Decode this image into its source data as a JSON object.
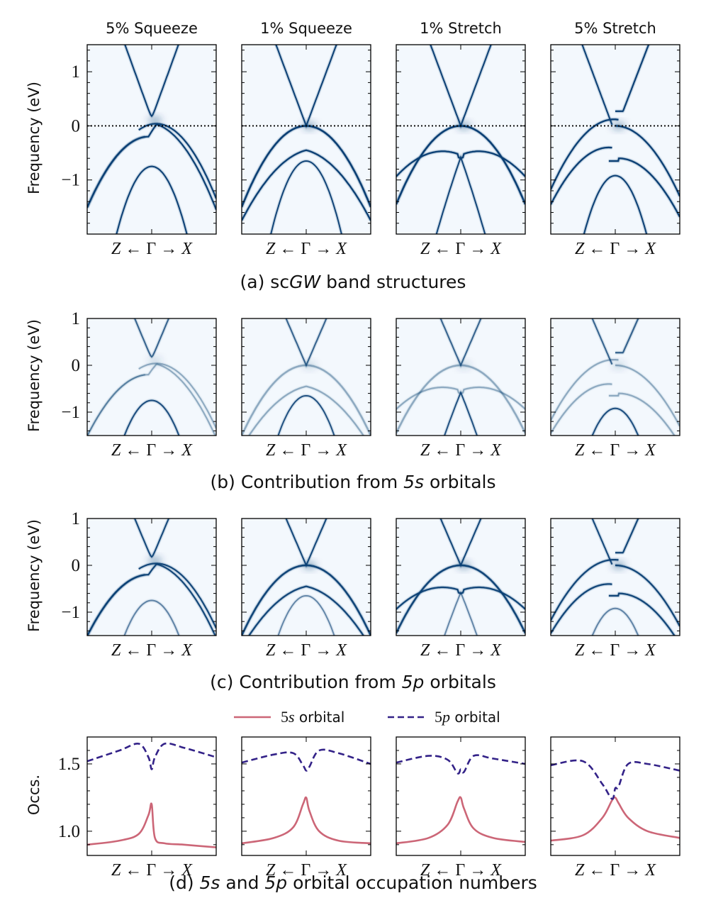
{
  "column_titles": [
    "5% Squeeze",
    "1% Squeeze",
    "1% Stretch",
    "5% Stretch"
  ],
  "kpath": {
    "left": "Z",
    "left_arrow": "←",
    "center": "Γ",
    "right_arrow": "→",
    "right": "X"
  },
  "chart_data": [
    {
      "type": "heatmap",
      "row": "a",
      "caption_prefix": "(a) sc",
      "caption_italic": "GW",
      "caption_suffix": " band structures",
      "ylabel": "Frequency (eV)",
      "ylim": [
        -2,
        1.5
      ],
      "yticks": [
        1,
        0,
        -1
      ],
      "ytick_labels": [
        "1",
        "0",
        "−1"
      ],
      "fermi_line": 0,
      "panels": [
        "5% Squeeze",
        "1% Squeeze",
        "1% Stretch",
        "5% Stretch"
      ]
    },
    {
      "type": "heatmap",
      "row": "b",
      "caption_prefix": "(b) Contribution from ",
      "caption_italic": "5s",
      "caption_suffix": " orbitals",
      "ylabel": "Frequency (eV)",
      "ylim": [
        -1.5,
        1
      ],
      "yticks": [
        1,
        0,
        -1
      ],
      "ytick_labels": [
        "1",
        "0",
        "−1"
      ],
      "panels": [
        "5% Squeeze",
        "1% Squeeze",
        "1% Stretch",
        "5% Stretch"
      ]
    },
    {
      "type": "heatmap",
      "row": "c",
      "caption_prefix": "(c) Contribution from ",
      "caption_italic": "5p",
      "caption_suffix": " orbitals",
      "ylabel": "Frequency (eV)",
      "ylim": [
        -1.5,
        1
      ],
      "yticks": [
        1,
        0,
        -1
      ],
      "ytick_labels": [
        "1",
        "0",
        "−1"
      ],
      "panels": [
        "5% Squeeze",
        "1% Squeeze",
        "1% Stretch",
        "5% Stretch"
      ]
    },
    {
      "type": "line",
      "row": "d",
      "caption_prefix": "(d) ",
      "caption_italic": "5s",
      "caption_mid": " and ",
      "caption_italic2": "5p",
      "caption_suffix": " orbital occupation numbers",
      "ylabel": "Occs.",
      "ylim": [
        0.82,
        1.7
      ],
      "yticks": [
        1.5,
        1.0
      ],
      "ytick_labels": [
        "1.5",
        "1.0"
      ],
      "legend": {
        "placement": "top-center",
        "entries": [
          {
            "math": "5s",
            "text": " orbital",
            "color": "#cc6677",
            "style": "solid"
          },
          {
            "math": "5p",
            "text": " orbital",
            "color": "#332288",
            "style": "dashed"
          }
        ]
      },
      "x": [
        -1,
        -0.5,
        -0.2,
        -0.05,
        0,
        0.05,
        0.2,
        0.5,
        1
      ],
      "panels": [
        {
          "name": "5% Squeeze",
          "series": [
            {
              "name": "5s orbital",
              "values": [
                0.9,
                0.93,
                0.98,
                1.12,
                1.2,
                0.95,
                0.91,
                0.9,
                0.88
              ]
            },
            {
              "name": "5p orbital",
              "values": [
                1.52,
                1.6,
                1.65,
                1.55,
                1.46,
                1.55,
                1.65,
                1.62,
                1.55
              ]
            }
          ]
        },
        {
          "name": "1% Squeeze",
          "series": [
            {
              "name": "5s orbital",
              "values": [
                0.91,
                0.95,
                1.03,
                1.2,
                1.25,
                1.15,
                1.0,
                0.93,
                0.91
              ]
            },
            {
              "name": "5p orbital",
              "values": [
                1.51,
                1.57,
                1.58,
                1.49,
                1.45,
                1.48,
                1.6,
                1.58,
                1.5
              ]
            }
          ]
        },
        {
          "name": "1% Stretch",
          "series": [
            {
              "name": "5s orbital",
              "values": [
                0.91,
                0.95,
                1.05,
                1.22,
                1.25,
                1.17,
                1.02,
                0.95,
                0.92
              ]
            },
            {
              "name": "5p orbital",
              "values": [
                1.51,
                1.56,
                1.53,
                1.43,
                1.46,
                1.44,
                1.56,
                1.54,
                1.5
              ]
            }
          ]
        },
        {
          "name": "5% Stretch",
          "series": [
            {
              "name": "5s orbital",
              "values": [
                0.93,
                0.97,
                1.1,
                1.23,
                1.25,
                1.21,
                1.1,
                1.0,
                0.95
              ]
            },
            {
              "name": "5p orbital",
              "values": [
                1.49,
                1.52,
                1.35,
                1.24,
                1.32,
                1.33,
                1.5,
                1.5,
                1.45
              ]
            }
          ]
        }
      ]
    }
  ],
  "colors": {
    "band": "#0b3f74",
    "background": "#f3f8fd",
    "s_line": "#cc6677",
    "p_line": "#332288"
  }
}
